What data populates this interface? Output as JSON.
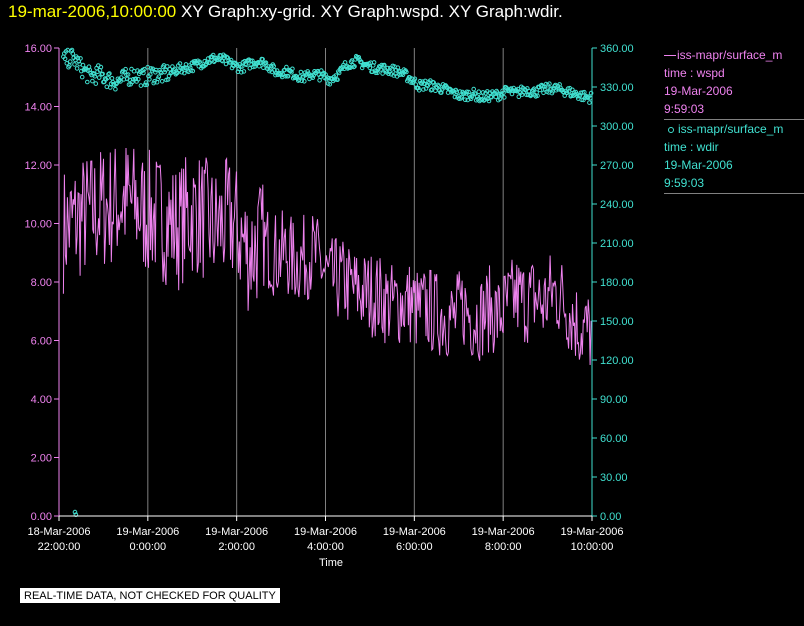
{
  "header": {
    "timestamp": "19-mar-2006,10:00:00",
    "graphs": " XY Graph:xy-grid.  XY Graph:wspd.  XY Graph:wdir."
  },
  "colors": {
    "wspd": "#ee82ee",
    "wdir": "#40e0d0",
    "timestamp": "#ffff00",
    "axis_text": "#ffffff",
    "grid": "#808080"
  },
  "legend": {
    "wspd": {
      "source": "iss-mapr/surface_m",
      "variable": "time : wspd",
      "date": "19-Mar-2006",
      "time": "9:59:03"
    },
    "wdir": {
      "source": "iss-mapr/surface_m",
      "variable": "time : wdir",
      "date": "19-Mar-2006",
      "time": "9:59:03"
    }
  },
  "notice": "REAL-TIME DATA, NOT CHECKED FOR QUALITY",
  "chart_data": {
    "type": "line",
    "xlabel": "Time",
    "x_ticks": [
      {
        "hour": -2,
        "line1": "18-Mar-2006",
        "line2": "22:00:00"
      },
      {
        "hour": 0,
        "line1": "19-Mar-2006",
        "line2": "0:00:00"
      },
      {
        "hour": 2,
        "line1": "19-Mar-2006",
        "line2": "2:00:00"
      },
      {
        "hour": 4,
        "line1": "19-Mar-2006",
        "line2": "4:00:00"
      },
      {
        "hour": 6,
        "line1": "19-Mar-2006",
        "line2": "6:00:00"
      },
      {
        "hour": 8,
        "line1": "19-Mar-2006",
        "line2": "8:00:00"
      },
      {
        "hour": 10,
        "line1": "19-Mar-2006",
        "line2": "10:00:00"
      }
    ],
    "xlim": [
      -2,
      10
    ],
    "y_left": {
      "lim": [
        0,
        16
      ],
      "ticks": [
        "0.00",
        "2.00",
        "4.00",
        "6.00",
        "8.00",
        "10.00",
        "12.00",
        "14.00",
        "16.00"
      ]
    },
    "y_right": {
      "lim": [
        0,
        360
      ],
      "ticks": [
        "0.00",
        "30.00",
        "60.00",
        "90.00",
        "120.00",
        "150.00",
        "180.00",
        "210.00",
        "240.00",
        "270.00",
        "300.00",
        "330.00",
        "360.00"
      ]
    },
    "grid": "vertical",
    "series": [
      {
        "name": "wspd",
        "style": "line",
        "axis": "left",
        "x": [
          -1.9,
          -1.7,
          -1.5,
          -1.3,
          -1.1,
          -0.9,
          -0.7,
          -0.5,
          -0.3,
          -0.1,
          0.1,
          0.3,
          0.5,
          0.7,
          0.9,
          1.1,
          1.3,
          1.5,
          1.7,
          1.9,
          2.1,
          2.3,
          2.5,
          2.7,
          2.9,
          3.1,
          3.3,
          3.5,
          3.7,
          3.9,
          4.1,
          4.3,
          4.5,
          4.7,
          4.9,
          5.1,
          5.3,
          5.5,
          5.7,
          5.9,
          6.1,
          6.3,
          6.5,
          6.7,
          6.9,
          7.1,
          7.3,
          7.5,
          7.7,
          7.9,
          8.1,
          8.3,
          8.5,
          8.7,
          8.9,
          9.1,
          9.3,
          9.5,
          9.7,
          9.9
        ],
        "values": [
          9.8,
          10.0,
          10.2,
          10.3,
          10.5,
          10.6,
          10.7,
          10.8,
          10.6,
          10.4,
          10.3,
          10.2,
          10.0,
          9.9,
          10.3,
          10.4,
          10.1,
          9.8,
          10.0,
          10.1,
          9.5,
          9.0,
          9.4,
          9.2,
          8.9,
          9.0,
          8.7,
          8.8,
          9.0,
          8.6,
          8.0,
          8.1,
          7.9,
          7.7,
          7.6,
          7.6,
          7.4,
          7.2,
          7.3,
          7.3,
          7.0,
          7.1,
          6.9,
          6.9,
          6.7,
          7.2,
          6.8,
          6.8,
          7.1,
          6.8,
          7.2,
          7.5,
          7.3,
          7.5,
          7.2,
          7.7,
          7.5,
          7.0,
          6.5,
          6.3
        ]
      },
      {
        "name": "wdir",
        "style": "circles",
        "axis": "right",
        "x": [
          -1.9,
          -1.7,
          -1.5,
          -1.3,
          -1.1,
          -0.9,
          -0.7,
          -0.5,
          -0.3,
          -0.1,
          0.1,
          0.3,
          0.5,
          0.7,
          0.9,
          1.1,
          1.3,
          1.5,
          1.7,
          1.9,
          2.1,
          2.3,
          2.5,
          2.7,
          2.9,
          3.1,
          3.3,
          3.5,
          3.7,
          3.9,
          4.1,
          4.3,
          4.5,
          4.7,
          4.9,
          5.1,
          5.3,
          5.5,
          5.7,
          5.9,
          6.1,
          6.3,
          6.5,
          6.7,
          6.9,
          7.1,
          7.3,
          7.5,
          7.7,
          7.9,
          8.1,
          8.3,
          8.5,
          8.7,
          8.9,
          9.1,
          9.3,
          9.5,
          9.7,
          9.9
        ],
        "values": [
          350,
          353,
          345,
          338,
          340,
          336,
          334,
          337,
          340,
          337,
          340,
          339,
          341,
          344,
          345,
          347,
          350,
          352,
          351,
          347,
          345,
          348,
          350,
          347,
          341,
          342,
          340,
          337,
          340,
          339,
          336,
          340,
          348,
          350,
          347,
          345,
          344,
          343,
          341,
          337,
          331,
          332,
          330,
          328,
          325,
          323,
          325,
          322,
          323,
          324,
          327,
          325,
          328,
          326,
          328,
          329,
          328,
          326,
          324,
          322
        ]
      }
    ],
    "wdir_outliers": {
      "x": [
        -1.64,
        -1.62
      ],
      "values": [
        3,
        1
      ]
    }
  }
}
